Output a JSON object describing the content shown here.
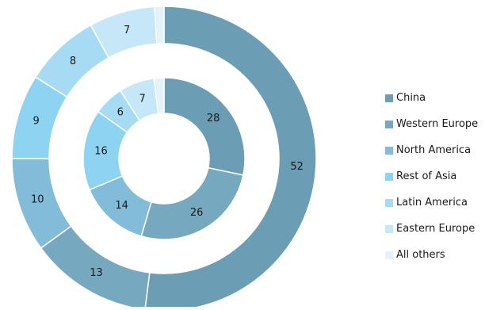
{
  "chart_data": {
    "type": "pie",
    "categories": [
      "China",
      "Western Europe",
      "North America",
      "Rest of Asia",
      "Latin America",
      "Eastern Europe",
      "All others"
    ],
    "colors": [
      "#6b9db4",
      "#76a8c0",
      "#82bcd8",
      "#8fd3f2",
      "#a7dbf3",
      "#c6e7f7",
      "#e2f3fb"
    ],
    "outer_ring": {
      "values": [
        52,
        13,
        10,
        9,
        8,
        7,
        1
      ],
      "labels": [
        "52",
        "13",
        "10",
        "9",
        "8",
        "7",
        ""
      ]
    },
    "inner_ring": {
      "values": [
        28,
        26,
        14,
        16,
        6,
        7,
        2
      ],
      "labels": [
        "28",
        "26",
        "14",
        "16",
        "6",
        "7",
        ""
      ]
    },
    "legend_position": "right"
  }
}
